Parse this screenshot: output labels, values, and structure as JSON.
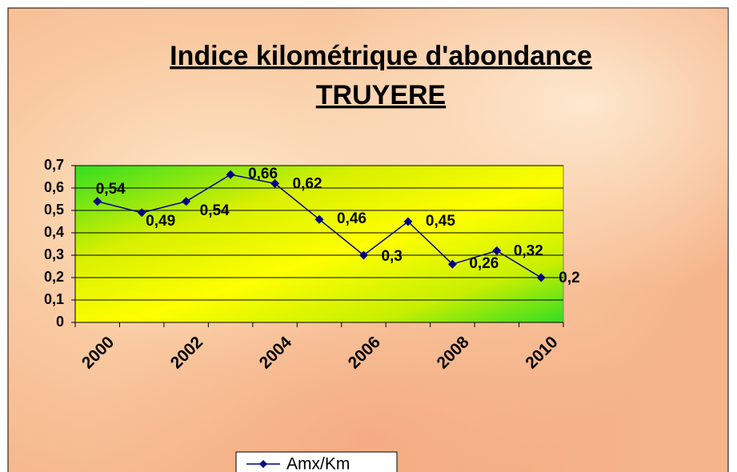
{
  "chart_data": {
    "type": "line",
    "title_lines": [
      "Indice kilométrique d'abondance",
      "TRUYERE"
    ],
    "categories": [
      "2000",
      null,
      "2002",
      null,
      "2004",
      null,
      "2006",
      null,
      "2008",
      null,
      "2010"
    ],
    "series": [
      {
        "name": "Amx/Km",
        "color": "#000080",
        "values": [
          0.54,
          0.49,
          0.54,
          0.66,
          0.62,
          0.46,
          0.3,
          0.45,
          0.26,
          0.32,
          0.2
        ],
        "value_labels": [
          "0,54",
          "0,49",
          "0,54",
          "0,66",
          "0,62",
          "0,46",
          "0,3",
          "0,45",
          "0,26",
          "0,32",
          "0,2"
        ]
      }
    ],
    "ylim": [
      0,
      0.7
    ],
    "yticks": [
      0,
      {
        "value": 0.1,
        "label": "0,1"
      },
      {
        "value": 0.2,
        "label": "0,2"
      },
      {
        "value": 0.3,
        "label": "0,3"
      },
      {
        "value": 0.4,
        "label": "0,4"
      },
      {
        "value": 0.5,
        "label": "0,5"
      },
      {
        "value": 0.6,
        "label": "0,6"
      },
      {
        "value": 0.7,
        "label": "0,7"
      }
    ],
    "grid": true,
    "legend": "bottom"
  }
}
